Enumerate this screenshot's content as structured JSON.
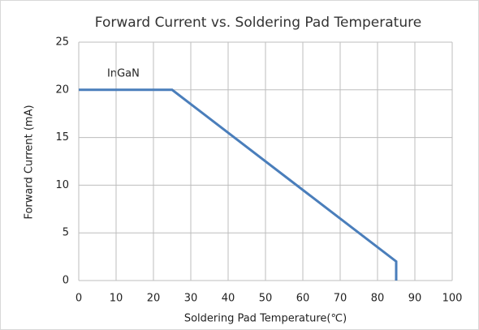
{
  "chart_data": {
    "type": "line",
    "title": "Forward Current  vs. Soldering Pad Temperature",
    "x_label": "Soldering Pad Temperature(℃)",
    "y_label": "Forward Current (mA)",
    "annotation": "InGaN",
    "series": [
      {
        "name": "InGaN",
        "color": "#4a7ebb",
        "x": [
          0,
          25,
          85,
          85
        ],
        "values": [
          20,
          20,
          2,
          0
        ]
      }
    ],
    "xlim": [
      0,
      100
    ],
    "xticks": [
      0,
      10,
      20,
      30,
      40,
      50,
      60,
      70,
      80,
      90,
      100
    ],
    "ylim": [
      0,
      25
    ],
    "yticks": [
      0,
      5,
      10,
      15,
      20,
      25
    ],
    "grid": true
  }
}
